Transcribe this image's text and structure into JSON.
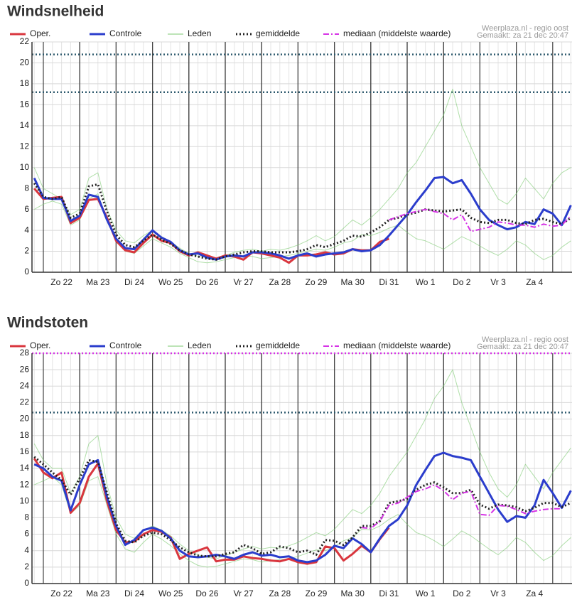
{
  "chart_data": [
    {
      "type": "line",
      "title": "Windsnelheid",
      "notes": [
        "Weerplaza.nl - regio oost",
        "Gemaakt: za 21 dec 20:47"
      ],
      "x": [
        -6,
        0,
        6,
        12,
        18,
        24,
        30,
        36,
        42,
        48,
        54,
        60,
        66,
        72,
        78,
        84,
        90,
        96,
        102,
        108,
        114,
        120,
        126,
        132,
        138,
        144,
        150,
        156,
        162,
        168,
        174,
        180,
        186,
        192,
        198,
        204,
        210,
        216,
        222,
        228,
        234,
        240,
        246,
        252,
        258,
        264,
        270,
        276,
        282,
        288,
        294,
        300,
        306,
        312,
        318,
        324,
        330,
        336,
        342,
        348
      ],
      "xlim": [
        -7.5,
        348.75
      ],
      "xticks": [
        {
          "value": 12,
          "label": "Zo 22"
        },
        {
          "value": 36,
          "label": "Ma 23"
        },
        {
          "value": 60,
          "label": "Di 24"
        },
        {
          "value": 84,
          "label": "Wo 25"
        },
        {
          "value": 108,
          "label": "Do 26"
        },
        {
          "value": 132,
          "label": "Vr 27"
        },
        {
          "value": 156,
          "label": "Za 28"
        },
        {
          "value": 180,
          "label": "Zo 29"
        },
        {
          "value": 204,
          "label": "Ma 30"
        },
        {
          "value": 228,
          "label": "Di 31"
        },
        {
          "value": 252,
          "label": "Wo 1"
        },
        {
          "value": 276,
          "label": "Do 2"
        },
        {
          "value": 300,
          "label": "Vr 3"
        },
        {
          "value": 324,
          "label": "Za 4"
        }
      ],
      "ylim": [
        0,
        22
      ],
      "yticks": [
        0,
        2,
        4,
        6,
        8,
        10,
        12,
        14,
        16,
        18,
        20,
        22
      ],
      "grid": true,
      "reference_lines": [
        {
          "value": 20.8,
          "color": "#2e5a6e"
        },
        {
          "value": 17.2,
          "color": "#2e5a6e"
        }
      ],
      "series": [
        {
          "name": "Oper.",
          "color": "#d9363e",
          "dash": "solid",
          "values": [
            8.0,
            7.0,
            7.1,
            7.2,
            4.7,
            5.2,
            6.9,
            7.0,
            5.2,
            3.0,
            2.1,
            1.9,
            2.8,
            3.6,
            3.0,
            2.8,
            2.0,
            1.6,
            1.9,
            1.6,
            1.3,
            1.6,
            1.5,
            1.2,
            1.9,
            1.8,
            1.6,
            1.4,
            0.9,
            1.6,
            1.6,
            1.7,
            1.9,
            1.7,
            1.8,
            2.2,
            2.1,
            2.1,
            2.9,
            3.2,
            null,
            null,
            null,
            null,
            null,
            null,
            null,
            null,
            null,
            null,
            null,
            null,
            null,
            null,
            null,
            null,
            null,
            null,
            null,
            null
          ]
        },
        {
          "name": "Controle",
          "color": "#2b3dcc",
          "dash": "solid",
          "values": [
            9.0,
            7.1,
            7.0,
            7.0,
            4.9,
            5.4,
            7.4,
            7.2,
            5.0,
            3.2,
            2.3,
            2.2,
            3.1,
            4.0,
            3.3,
            2.9,
            2.1,
            1.7,
            1.8,
            1.4,
            1.2,
            1.5,
            1.6,
            1.5,
            1.9,
            1.9,
            1.8,
            1.6,
            1.3,
            1.6,
            1.8,
            1.5,
            1.7,
            1.8,
            1.9,
            2.2,
            2.0,
            2.1,
            2.6,
            3.5,
            4.5,
            5.5,
            6.7,
            7.8,
            9.0,
            9.1,
            8.5,
            8.8,
            7.5,
            6.0,
            5.0,
            4.5,
            4.1,
            4.3,
            4.8,
            4.6,
            6.0,
            5.6,
            4.5,
            6.4
          ]
        },
        {
          "name": "Leden",
          "color": "#7bc96f",
          "dash": "thin",
          "members": [
            [
              10,
              8,
              7.5,
              7,
              5.5,
              6,
              9,
              9.5,
              6,
              4,
              3,
              2.8,
              3.5,
              4,
              3.4,
              2.9,
              2.3,
              1.8,
              1.5,
              1.4,
              1.2,
              1.6,
              1.9,
              2.1,
              2.2,
              2.0,
              2.2,
              2.1,
              2.3,
              2.6,
              3.0,
              3.5,
              3.0,
              3.4,
              4.2,
              5.0,
              4.5,
              5.2,
              6.0,
              7.0,
              8.0,
              9.5,
              10.5,
              12.0,
              13.5,
              15.0,
              17.5,
              14.0,
              12.0,
              10.0,
              8.5,
              7.0,
              6.5,
              7.5,
              9.0,
              8.0,
              7.0,
              8.5,
              9.5,
              10.0
            ],
            [
              6,
              6.5,
              6.8,
              6.5,
              4.5,
              5,
              7,
              7.5,
              5,
              3,
              2,
              1.8,
              2.5,
              3.2,
              2.8,
              2.4,
              1.8,
              1.4,
              1.0,
              0.9,
              1.0,
              1.2,
              1.4,
              1.6,
              1.5,
              1.3,
              1.4,
              1.5,
              1.6,
              1.8,
              2.0,
              2.2,
              2.1,
              2.4,
              2.8,
              3.0,
              3.6,
              3.5,
              3.8,
              4.2,
              4.5,
              3.8,
              3.2,
              3.0,
              2.6,
              2.2,
              2.8,
              3.4,
              3.0,
              2.5,
              2.0,
              1.6,
              2.2,
              3.0,
              2.6,
              1.8,
              1.2,
              1.6,
              2.4,
              3.0
            ]
          ]
        },
        {
          "name": "gemiddelde",
          "color": "#222222",
          "dash": "dotted",
          "values": [
            8.5,
            7.2,
            7.0,
            7.2,
            5.2,
            5.6,
            8.2,
            8.4,
            5.8,
            3.6,
            2.6,
            2.4,
            3.0,
            3.6,
            3.1,
            2.7,
            2.1,
            1.7,
            1.5,
            1.3,
            1.2,
            1.5,
            1.7,
            1.9,
            2.0,
            2.0,
            1.9,
            1.9,
            1.9,
            2.0,
            2.2,
            2.6,
            2.4,
            2.7,
            3.0,
            3.5,
            3.4,
            3.8,
            4.3,
            5.0,
            5.2,
            5.5,
            5.7,
            6.0,
            5.9,
            5.8,
            5.9,
            6.0,
            5.2,
            4.8,
            4.7,
            5.0,
            5.0,
            4.7,
            4.6,
            5.0,
            5.1,
            4.8,
            4.6,
            5.2
          ]
        },
        {
          "name": "mediaan (middelste waarde)",
          "color": "#d633e6",
          "dash": "dashdot",
          "values": [
            null,
            null,
            null,
            null,
            null,
            null,
            null,
            null,
            null,
            null,
            null,
            null,
            null,
            null,
            null,
            null,
            null,
            null,
            null,
            null,
            null,
            null,
            null,
            null,
            null,
            null,
            null,
            null,
            null,
            null,
            null,
            null,
            null,
            null,
            null,
            null,
            null,
            null,
            null,
            5.0,
            5.3,
            5.6,
            5.8,
            6.0,
            5.8,
            5.6,
            5.0,
            5.5,
            3.9,
            4.1,
            4.3,
            4.8,
            4.7,
            4.5,
            4.5,
            4.3,
            4.6,
            4.4,
            4.5,
            5.4
          ]
        }
      ]
    },
    {
      "type": "line",
      "title": "Windstoten",
      "notes": [
        "Weerplaza.nl - regio oost",
        "Gemaakt: za 21 dec 20:47"
      ],
      "x": [
        -6,
        0,
        6,
        12,
        18,
        24,
        30,
        36,
        42,
        48,
        54,
        60,
        66,
        72,
        78,
        84,
        90,
        96,
        102,
        108,
        114,
        120,
        126,
        132,
        138,
        144,
        150,
        156,
        162,
        168,
        174,
        180,
        186,
        192,
        198,
        204,
        210,
        216,
        222,
        228,
        234,
        240,
        246,
        252,
        258,
        264,
        270,
        276,
        282,
        288,
        294,
        300,
        306,
        312,
        318,
        324,
        330,
        336,
        342,
        348
      ],
      "xlim": [
        -7.5,
        348.75
      ],
      "xticks": [
        {
          "value": 12,
          "label": "Zo 22"
        },
        {
          "value": 36,
          "label": "Ma 23"
        },
        {
          "value": 60,
          "label": "Di 24"
        },
        {
          "value": 84,
          "label": "Wo 25"
        },
        {
          "value": 108,
          "label": "Do 26"
        },
        {
          "value": 132,
          "label": "Vr 27"
        },
        {
          "value": 156,
          "label": "Za 28"
        },
        {
          "value": 180,
          "label": "Zo 29"
        },
        {
          "value": 204,
          "label": "Ma 30"
        },
        {
          "value": 228,
          "label": "Di 31"
        },
        {
          "value": 252,
          "label": "Wo 1"
        },
        {
          "value": 276,
          "label": "Do 2"
        },
        {
          "value": 300,
          "label": "Vr 3"
        },
        {
          "value": 324,
          "label": "Za 4"
        }
      ],
      "ylim": [
        0,
        28
      ],
      "yticks": [
        0,
        2,
        4,
        6,
        8,
        10,
        12,
        14,
        16,
        18,
        20,
        22,
        24,
        26,
        28
      ],
      "grid": true,
      "reference_lines": [
        {
          "value": 28,
          "color": "#d633e6"
        },
        {
          "value": 20.8,
          "color": "#2e5a6e"
        }
      ],
      "series": [
        {
          "name": "Oper.",
          "color": "#d9363e",
          "dash": "solid",
          "values": [
            15.2,
            13.5,
            12.8,
            13.5,
            8.6,
            9.8,
            13.0,
            14.6,
            10.0,
            6.5,
            5.0,
            5.1,
            6.0,
            6.5,
            6.3,
            5.6,
            3.0,
            3.6,
            4.0,
            4.4,
            2.7,
            2.9,
            2.9,
            3.3,
            3.1,
            3.0,
            2.8,
            2.7,
            3.0,
            2.6,
            2.4,
            2.6,
            4.5,
            4.3,
            2.8,
            3.6,
            4.6,
            3.8,
            5.4,
            6.8,
            null,
            null,
            null,
            null,
            null,
            null,
            null,
            null,
            null,
            null,
            null,
            null,
            null,
            null,
            null,
            null,
            null,
            null,
            null,
            null
          ]
        },
        {
          "name": "Controle",
          "color": "#2b3dcc",
          "dash": "solid",
          "values": [
            14.5,
            14.0,
            13.0,
            12.5,
            8.9,
            12.0,
            14.5,
            15.0,
            10.5,
            7.0,
            4.7,
            5.3,
            6.5,
            6.8,
            6.4,
            5.5,
            4.0,
            3.3,
            3.2,
            3.3,
            3.5,
            3.3,
            3.0,
            3.5,
            3.8,
            3.4,
            3.5,
            3.2,
            3.3,
            2.8,
            2.6,
            2.8,
            3.5,
            4.6,
            4.3,
            5.5,
            4.8,
            3.8,
            5.5,
            7.0,
            7.8,
            9.5,
            12.0,
            13.8,
            15.5,
            15.9,
            15.5,
            15.3,
            15.0,
            13.0,
            11.0,
            9.0,
            7.5,
            8.2,
            8.0,
            9.5,
            12.6,
            11.0,
            9.2,
            11.3
          ]
        },
        {
          "name": "Leden",
          "color": "#7bc96f",
          "dash": "thin",
          "members": [
            [
              17,
              15,
              14,
              14,
              11,
              13,
              17,
              18,
              12,
              8,
              6,
              5.5,
              6.5,
              7,
              6.5,
              5.8,
              4.8,
              4.0,
              3.5,
              3.2,
              3.0,
              3.4,
              3.8,
              4.2,
              4.5,
              4.2,
              4.4,
              4.3,
              4.6,
              5.0,
              5.6,
              6.2,
              5.8,
              6.6,
              7.8,
              9.0,
              8.5,
              9.5,
              11.0,
              13.0,
              14.5,
              16.0,
              18.0,
              20.0,
              22.5,
              24.0,
              26.0,
              22.0,
              19.0,
              16.0,
              13.5,
              11.5,
              10.5,
              12.0,
              14.5,
              13.0,
              11.5,
              13.5,
              15.0,
              16.5
            ],
            [
              12,
              12.5,
              13,
              12,
              8.5,
              9.5,
              12.5,
              13,
              9.5,
              6,
              4.2,
              3.8,
              5,
              6,
              5.4,
              4.6,
              3.6,
              2.8,
              2.2,
              2.0,
              2.1,
              2.4,
              2.7,
              3.0,
              2.9,
              2.6,
              2.8,
              2.9,
              3.0,
              3.3,
              3.7,
              4.1,
              4.0,
              4.5,
              5.2,
              5.6,
              6.6,
              6.5,
              7.0,
              7.8,
              8.4,
              7.2,
              6.2,
              5.8,
              5.2,
              4.5,
              5.4,
              6.4,
              5.8,
              5.0,
              4.2,
              3.5,
              4.4,
              5.6,
              5.0,
              3.8,
              2.8,
              3.4,
              4.6,
              5.6
            ]
          ]
        },
        {
          "name": "gemiddelde",
          "color": "#222222",
          "dash": "dotted",
          "values": [
            15.4,
            14.5,
            13.5,
            12.6,
            10.8,
            12.8,
            15.0,
            14.8,
            11.0,
            7.3,
            5.2,
            5.0,
            5.8,
            6.2,
            6.0,
            5.3,
            4.4,
            3.8,
            3.4,
            3.3,
            3.3,
            3.6,
            3.8,
            4.7,
            4.3,
            3.6,
            3.8,
            4.5,
            4.3,
            3.8,
            4.0,
            3.5,
            5.3,
            5.2,
            4.7,
            5.6,
            7.0,
            7.0,
            7.6,
            9.8,
            10.0,
            10.3,
            11.4,
            12.0,
            12.3,
            11.7,
            11.0,
            11.0,
            11.4,
            9.6,
            9.1,
            9.6,
            9.5,
            9.3,
            8.8,
            9.2,
            9.8,
            9.8,
            9.3,
            9.8
          ]
        },
        {
          "name": "mediaan (middelste waarde)",
          "color": "#d633e6",
          "dash": "dashdot",
          "values": [
            null,
            null,
            null,
            null,
            null,
            null,
            null,
            null,
            null,
            null,
            null,
            null,
            null,
            null,
            null,
            null,
            null,
            null,
            null,
            null,
            null,
            null,
            null,
            null,
            null,
            null,
            null,
            null,
            null,
            null,
            null,
            null,
            null,
            null,
            null,
            null,
            6.8,
            6.7,
            7.6,
            9.5,
            9.8,
            10.5,
            11.2,
            11.5,
            12.0,
            11.3,
            10.2,
            11.0,
            11.2,
            8.4,
            8.3,
            9.5,
            9.4,
            9.0,
            8.5,
            8.8,
            9.0,
            9.1,
            9.1,
            null
          ]
        }
      ]
    }
  ]
}
